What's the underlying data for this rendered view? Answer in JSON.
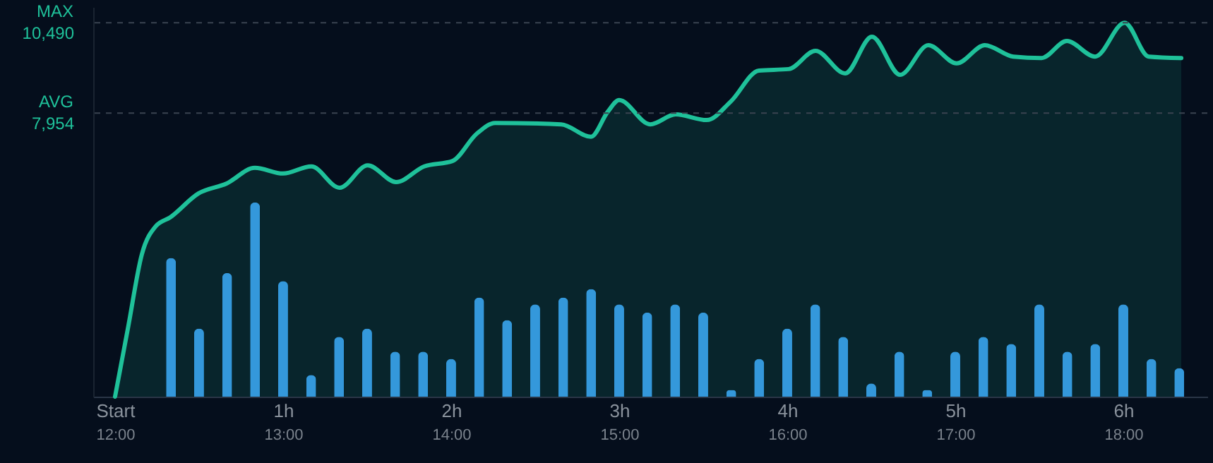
{
  "chart_data": {
    "type": "area",
    "xlim": [
      11.87,
      18.5
    ],
    "ylim": [
      0,
      10930
    ],
    "xticks": [
      {
        "value": 12,
        "label": "12:00"
      },
      {
        "value": 13,
        "label": "13:00"
      },
      {
        "value": 14,
        "label": "14:00"
      },
      {
        "value": 15,
        "label": "15:00"
      },
      {
        "value": 16,
        "label": "16:00"
      },
      {
        "value": 17,
        "label": "17:00"
      },
      {
        "value": 18,
        "label": "18:00"
      }
    ],
    "x2lim": [
      -0.13,
      6.5
    ],
    "x2ticks": [
      {
        "value": 0,
        "label": "Start"
      },
      {
        "value": 1,
        "label": "1h"
      },
      {
        "value": 2,
        "label": "2h"
      },
      {
        "value": 3,
        "label": "3h"
      },
      {
        "value": 4,
        "label": "4h"
      },
      {
        "value": 5,
        "label": "5h"
      },
      {
        "value": 6,
        "label": "6h"
      }
    ],
    "yticks": [
      {
        "value": 7954,
        "label": "7,954"
      },
      {
        "value": 10490,
        "label": "10,490"
      }
    ],
    "ref_lines": [
      {
        "axis": "y",
        "value": 10490,
        "label": "MAX",
        "line_style": "dashed",
        "color": "#3a4350"
      },
      {
        "axis": "y",
        "value": 7954,
        "label": "AVG",
        "line_style": "dashed",
        "color": "#3a4350"
      }
    ],
    "grid": false,
    "series": [
      {
        "color": "#1fc19a",
        "x": [
          12,
          12.076,
          12.16,
          12.244,
          12.328,
          12.496,
          12.664,
          12.832,
          13.0,
          13.168,
          13.336,
          13.504,
          13.672,
          13.84,
          14.008,
          14.151,
          14.261,
          14.655,
          14.832,
          14.933,
          15.0,
          15.185,
          15.336,
          15.521,
          15.664,
          15.832,
          16.008,
          16.168,
          16.345,
          16.504,
          16.672,
          16.84,
          17.008,
          17.176,
          17.345,
          17.513,
          17.664,
          17.832,
          18.008,
          18.151,
          18.345
        ],
        "values": [
          0,
          1900,
          4000,
          4790,
          5030,
          5700,
          5980,
          6420,
          6260,
          6460,
          5860,
          6490,
          6020,
          6460,
          6610,
          7370,
          7680,
          7640,
          7290,
          8000,
          8320,
          7640,
          7920,
          7760,
          8280,
          9150,
          9190,
          9700,
          9070,
          10100,
          9030,
          9860,
          9350,
          9860,
          9540,
          9500,
          9980,
          9540,
          10490,
          9540,
          9500
        ]
      },
      {
        "type": "bar",
        "color": "#3498db",
        "x": [
          12.333,
          12.5,
          12.667,
          12.833,
          13.0,
          13.167,
          13.333,
          13.5,
          13.667,
          13.833,
          14.0,
          14.167,
          14.333,
          14.5,
          14.667,
          14.833,
          15.0,
          15.167,
          15.333,
          15.5,
          15.667,
          15.833,
          16.0,
          16.167,
          16.333,
          16.5,
          16.667,
          16.833,
          17.0,
          17.167,
          17.333,
          17.5,
          17.667,
          17.833,
          18.0,
          18.167,
          18.333
        ],
        "values": [
          3890,
          1910,
          3470,
          5450,
          3240,
          610,
          1680,
          1910,
          1260,
          1260,
          1060,
          2780,
          2150,
          2590,
          2780,
          3020,
          2590,
          2360,
          2590,
          2360,
          190,
          1060,
          1910,
          2590,
          1680,
          370,
          1260,
          190,
          1260,
          1680,
          1480,
          2590,
          1260,
          1480,
          2590,
          1060,
          800
        ]
      }
    ]
  }
}
